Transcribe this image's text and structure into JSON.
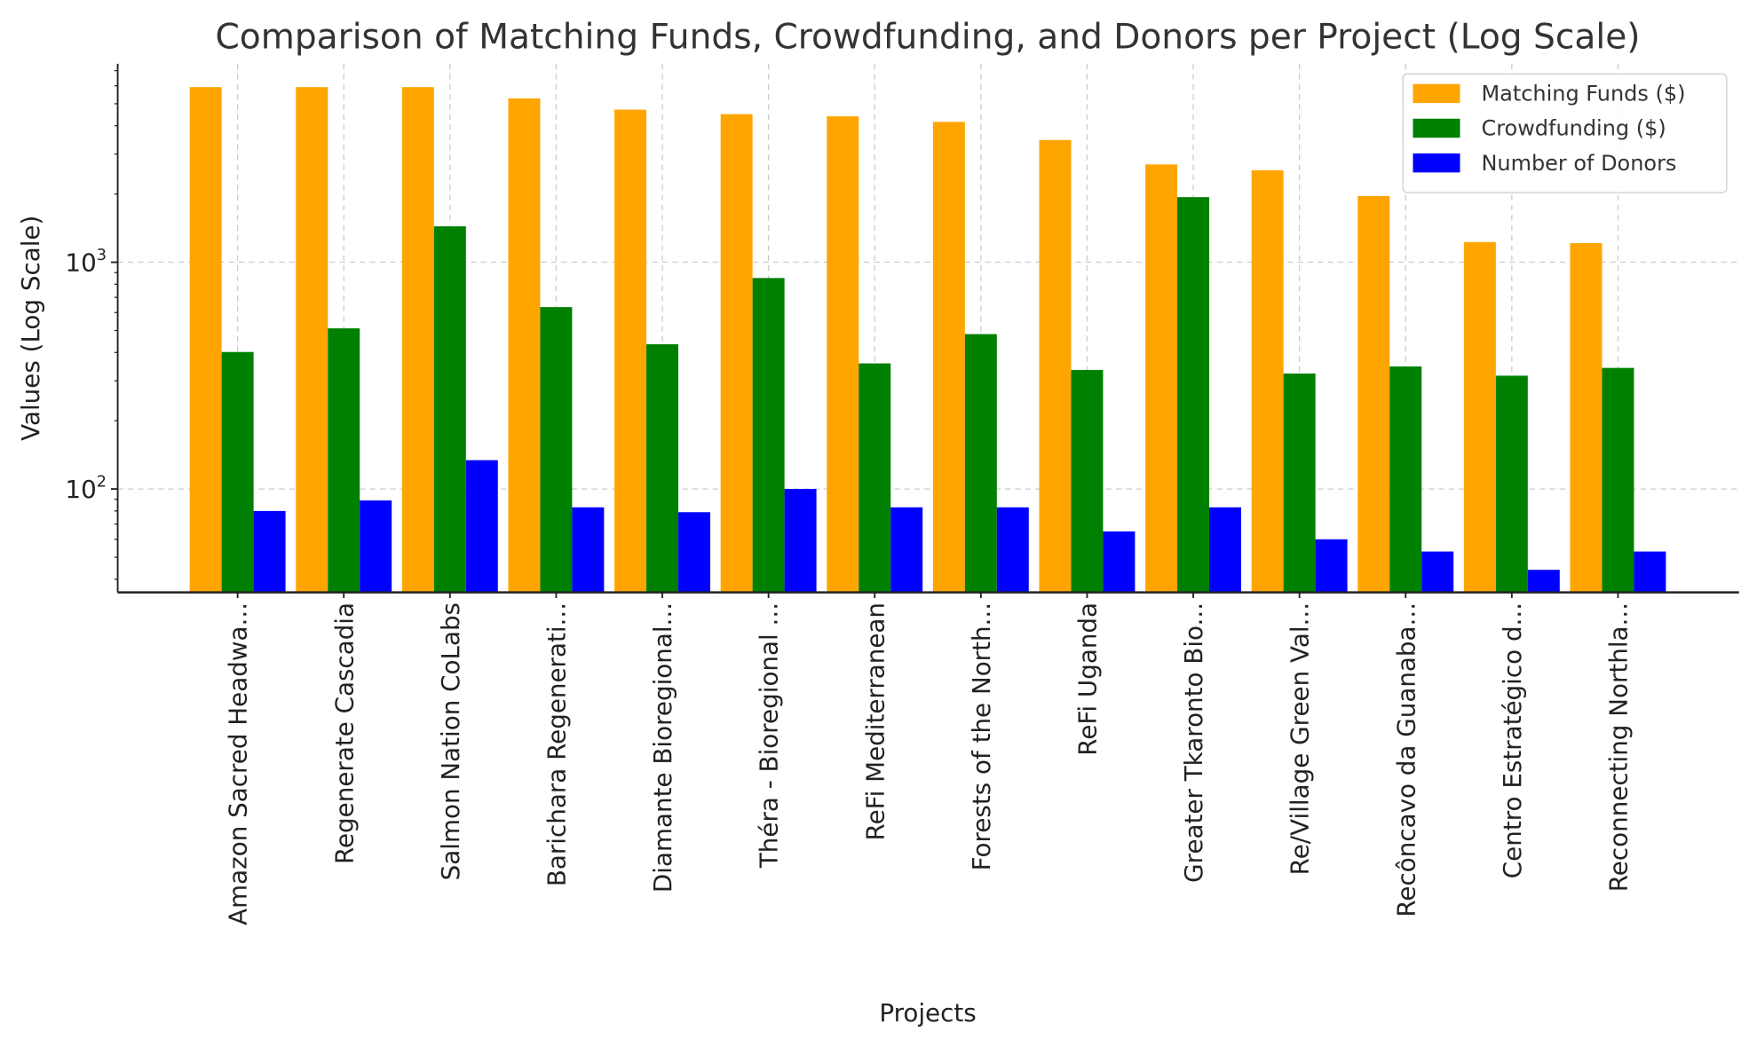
{
  "chart_data": {
    "type": "bar",
    "title": "Comparison of Matching Funds, Crowdfunding, and Donors per Project (Log Scale)",
    "xlabel": "Projects",
    "ylabel": "Values (Log Scale)",
    "yscale": "log",
    "ylim": [
      35,
      7500
    ],
    "yticks": [
      {
        "value": 100,
        "label": "10",
        "exp": "2"
      },
      {
        "value": 1000,
        "label": "10",
        "exp": "3"
      }
    ],
    "grid": true,
    "legend_position": "top-right",
    "categories": [
      "Amazon Sacred Headwa...",
      "Regenerate Cascadia",
      "Salmon Nation CoLabs",
      "Barichara Regenerati...",
      "Diamante Bioregional...",
      "Théra - Bioregional ...",
      "ReFi Mediterranean",
      "Forests of the North...",
      "ReFi Uganda",
      "Greater Tkaronto Bio...",
      "Re/Village Green Val...",
      "Recôncavo da Guanaba...",
      "Centro Estratégico d...",
      "Reconnecting Northla..."
    ],
    "series": [
      {
        "name": "Matching Funds ($)",
        "color": "#ffa500",
        "values": [
          5920,
          5920,
          5920,
          5280,
          4710,
          4500,
          4400,
          4160,
          3460,
          2700,
          2545,
          1960,
          1228,
          1214
        ]
      },
      {
        "name": "Crowdfunding ($)",
        "color": "#008000",
        "values": [
          402,
          511,
          1440,
          634,
          435,
          852,
          358,
          482,
          335,
          1937,
          323,
          347,
          316,
          342
        ]
      },
      {
        "name": "Number of Donors",
        "color": "#0000ff",
        "values": [
          80,
          89,
          134,
          83,
          79,
          100,
          83,
          83,
          65,
          83,
          60,
          53,
          44,
          53
        ]
      }
    ]
  }
}
